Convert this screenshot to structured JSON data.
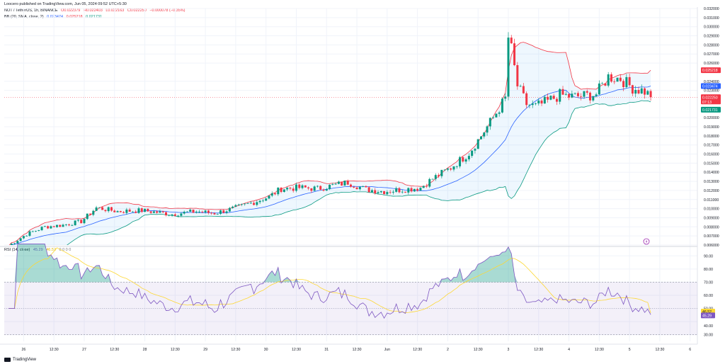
{
  "header": {
    "published": "Loocero published on TradingView.com, Jun 05, 2024 09:52 UTC+5:30",
    "symbol_line": {
      "symbol": "NOT / TetherUS, 1h, BINANCE",
      "open": "O0.022379",
      "high": "H0.022403",
      "low": "L0.022163",
      "close": "C0.022250",
      "change": "−0.000078 (−0.35%)"
    },
    "bb_line": {
      "label": "BB (20, SMA, close, 2)",
      "basis": "0.023474",
      "upper": "0.025218",
      "lower": "0.021731"
    },
    "rsi_line": {
      "label": "RSI (14, close)",
      "rsi": "45.29",
      "ma": "46.52",
      "extra": "0 0 0 0"
    }
  },
  "colors": {
    "up": "#089981",
    "down": "#f23645",
    "bb_upper": "#f23645",
    "bb_lower": "#089981",
    "bb_basis": "#2962ff",
    "bb_fill": "#2196f3",
    "rsi_line": "#7e57c2",
    "rsi_ma": "#fdd835",
    "rsi_band": "#7e57c2"
  },
  "footer": {
    "logo_icon": "tradingview-logo-icon",
    "text": "TradingView"
  },
  "chart_data": [
    {
      "type": "candlestick",
      "title": "NOT / TetherUS, 1h, BINANCE",
      "ylim": [
        0.006,
        0.032
      ],
      "y_ticks": [
        "0.032000",
        "0.031000",
        "0.030000",
        "0.029000",
        "0.028000",
        "0.027000",
        "0.026000",
        "0.024000",
        "0.023000",
        "0.020000",
        "0.019000",
        "0.018000",
        "0.017000",
        "0.016000",
        "0.015000",
        "0.014000",
        "0.013000",
        "0.012000",
        "0.011000",
        "0.010000",
        "0.009000",
        "0.008000",
        "0.007000",
        "0.006000"
      ],
      "y_tick_values": [
        0.032,
        0.031,
        0.03,
        0.029,
        0.028,
        0.027,
        0.026,
        0.024,
        0.023,
        0.02,
        0.019,
        0.018,
        0.017,
        0.016,
        0.015,
        0.014,
        0.013,
        0.012,
        0.011,
        0.01,
        0.009,
        0.008,
        0.007,
        0.006
      ],
      "x_range": [
        0,
        226
      ],
      "x_ticks": [
        {
          "label": "26",
          "bar": 5
        },
        {
          "label": "12:30",
          "bar": 15
        },
        {
          "label": "27",
          "bar": 25
        },
        {
          "label": "12:30",
          "bar": 35
        },
        {
          "label": "28",
          "bar": 45
        },
        {
          "label": "12:30",
          "bar": 55
        },
        {
          "label": "29",
          "bar": 65
        },
        {
          "label": "12:30",
          "bar": 75
        },
        {
          "label": "30",
          "bar": 85
        },
        {
          "label": "12:30",
          "bar": 95
        },
        {
          "label": "31",
          "bar": 105
        },
        {
          "label": "12:30",
          "bar": 115
        },
        {
          "label": "Jun",
          "bar": 125
        },
        {
          "label": "12:30",
          "bar": 135
        },
        {
          "label": "2",
          "bar": 145
        },
        {
          "label": "12:30",
          "bar": 155
        },
        {
          "label": "3",
          "bar": 165
        },
        {
          "label": "12:30",
          "bar": 175
        },
        {
          "label": "4",
          "bar": 185
        },
        {
          "label": "12:30",
          "bar": 195
        },
        {
          "label": "5",
          "bar": 205
        },
        {
          "label": "12:30",
          "bar": 215
        },
        {
          "label": "6",
          "bar": 225
        }
      ],
      "keypoints": [
        [
          0,
          0.0059
        ],
        [
          6,
          0.0072
        ],
        [
          12,
          0.008
        ],
        [
          18,
          0.0082
        ],
        [
          24,
          0.0086
        ],
        [
          29,
          0.0101
        ],
        [
          36,
          0.0097
        ],
        [
          44,
          0.0098
        ],
        [
          54,
          0.0094
        ],
        [
          62,
          0.0097
        ],
        [
          68,
          0.0095
        ],
        [
          74,
          0.01
        ],
        [
          80,
          0.0106
        ],
        [
          86,
          0.0113
        ],
        [
          90,
          0.0122
        ],
        [
          96,
          0.0123
        ],
        [
          102,
          0.0122
        ],
        [
          108,
          0.0126
        ],
        [
          112,
          0.0129
        ],
        [
          118,
          0.0121
        ],
        [
          124,
          0.0119
        ],
        [
          130,
          0.0121
        ],
        [
          136,
          0.0123
        ],
        [
          140,
          0.0133
        ],
        [
          146,
          0.0145
        ],
        [
          152,
          0.0161
        ],
        [
          156,
          0.018
        ],
        [
          160,
          0.02
        ],
        [
          164,
          0.0221
        ],
        [
          165,
          0.0295
        ],
        [
          168,
          0.0235
        ],
        [
          171,
          0.0215
        ],
        [
          174,
          0.0212
        ],
        [
          178,
          0.0218
        ],
        [
          182,
          0.0225
        ],
        [
          186,
          0.0223
        ],
        [
          190,
          0.0224
        ],
        [
          194,
          0.0226
        ],
        [
          198,
          0.0245
        ],
        [
          202,
          0.0243
        ],
        [
          206,
          0.0233
        ],
        [
          210,
          0.0229
        ],
        [
          212,
          0.0223
        ]
      ],
      "bb": {
        "period": 20,
        "mult": 2,
        "upper_last": 0.025218,
        "basis_last": 0.023474,
        "lower_last": 0.021731
      },
      "last_close": 0.02225,
      "last_close_label": "0.022250",
      "countdown": "07:13"
    },
    {
      "type": "line",
      "title": "RSI (14, close)",
      "ylim": [
        25,
        95
      ],
      "y_ticks": [
        "90.00",
        "80.00",
        "70.00",
        "60.00",
        "50.00",
        "40.00",
        "30.00"
      ],
      "y_tick_values": [
        90,
        80,
        70,
        60,
        50,
        40,
        30
      ],
      "overbought": 70,
      "oversold": 30,
      "rsi_last": 45.29,
      "ma_last": 46.52,
      "rsi_label": "45.29",
      "ma_label": "46.52"
    }
  ]
}
